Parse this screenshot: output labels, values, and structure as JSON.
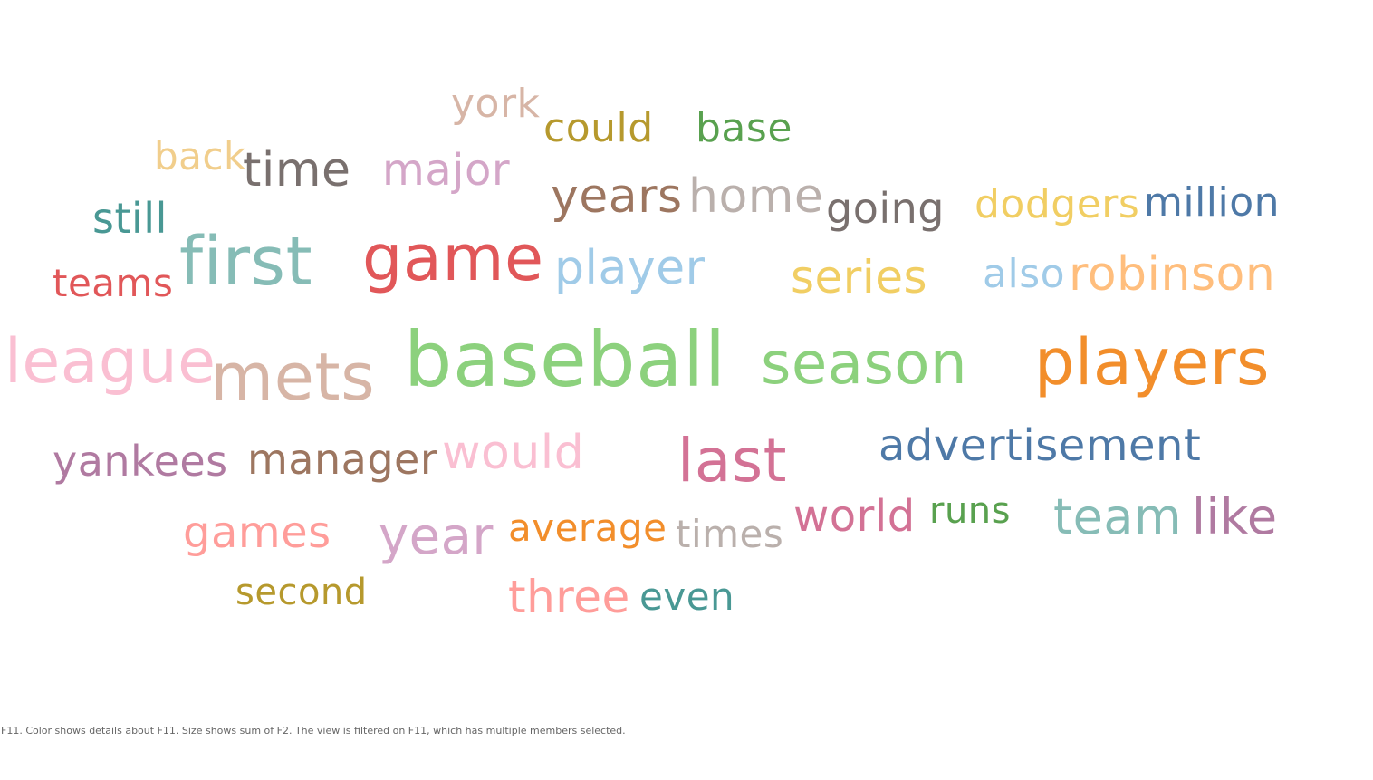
{
  "chart_data": {
    "type": "word-cloud",
    "words": [
      {
        "text": "york",
        "color": "#d7b5a6"
      },
      {
        "text": "could",
        "color": "#b6992d"
      },
      {
        "text": "base",
        "color": "#59a14f"
      },
      {
        "text": "back",
        "color": "#f1ce8c"
      },
      {
        "text": "time",
        "color": "#79706e"
      },
      {
        "text": "major",
        "color": "#d4a6c8"
      },
      {
        "text": "years",
        "color": "#9d7660"
      },
      {
        "text": "home",
        "color": "#bab0ac"
      },
      {
        "text": "going",
        "color": "#79706e"
      },
      {
        "text": "dodgers",
        "color": "#f1ce63"
      },
      {
        "text": "million",
        "color": "#4e79a7"
      },
      {
        "text": "still",
        "color": "#499894"
      },
      {
        "text": "first",
        "color": "#86bcb6"
      },
      {
        "text": "game",
        "color": "#e15759"
      },
      {
        "text": "player",
        "color": "#a0cbe8"
      },
      {
        "text": "series",
        "color": "#f1ce63"
      },
      {
        "text": "also",
        "color": "#a0cbe8"
      },
      {
        "text": "robinson",
        "color": "#ffbe7d"
      },
      {
        "text": "teams",
        "color": "#e15759"
      },
      {
        "text": "league",
        "color": "#fabfd2"
      },
      {
        "text": "mets",
        "color": "#d7b5a6"
      },
      {
        "text": "baseball",
        "color": "#8cd17d"
      },
      {
        "text": "season",
        "color": "#8cd17d"
      },
      {
        "text": "players",
        "color": "#f28e2b"
      },
      {
        "text": "yankees",
        "color": "#b07aa1"
      },
      {
        "text": "manager",
        "color": "#9d7660"
      },
      {
        "text": "would",
        "color": "#fabfd2"
      },
      {
        "text": "last",
        "color": "#d37295"
      },
      {
        "text": "advertisement",
        "color": "#4e79a7"
      },
      {
        "text": "games",
        "color": "#ff9d9a"
      },
      {
        "text": "year",
        "color": "#d4a6c8"
      },
      {
        "text": "average",
        "color": "#f28e2b"
      },
      {
        "text": "times",
        "color": "#bab0ac"
      },
      {
        "text": "world",
        "color": "#d37295"
      },
      {
        "text": "runs",
        "color": "#59a14f"
      },
      {
        "text": "team",
        "color": "#86bcb6"
      },
      {
        "text": "like",
        "color": "#b07aa1"
      },
      {
        "text": "second",
        "color": "#b6992d"
      },
      {
        "text": "three",
        "color": "#ff9d9a"
      },
      {
        "text": "even",
        "color": "#499894"
      }
    ]
  },
  "caption": "F11.  Color shows details about F11.  Size shows sum of F2. The view is filtered on F11, which has multiple members selected."
}
